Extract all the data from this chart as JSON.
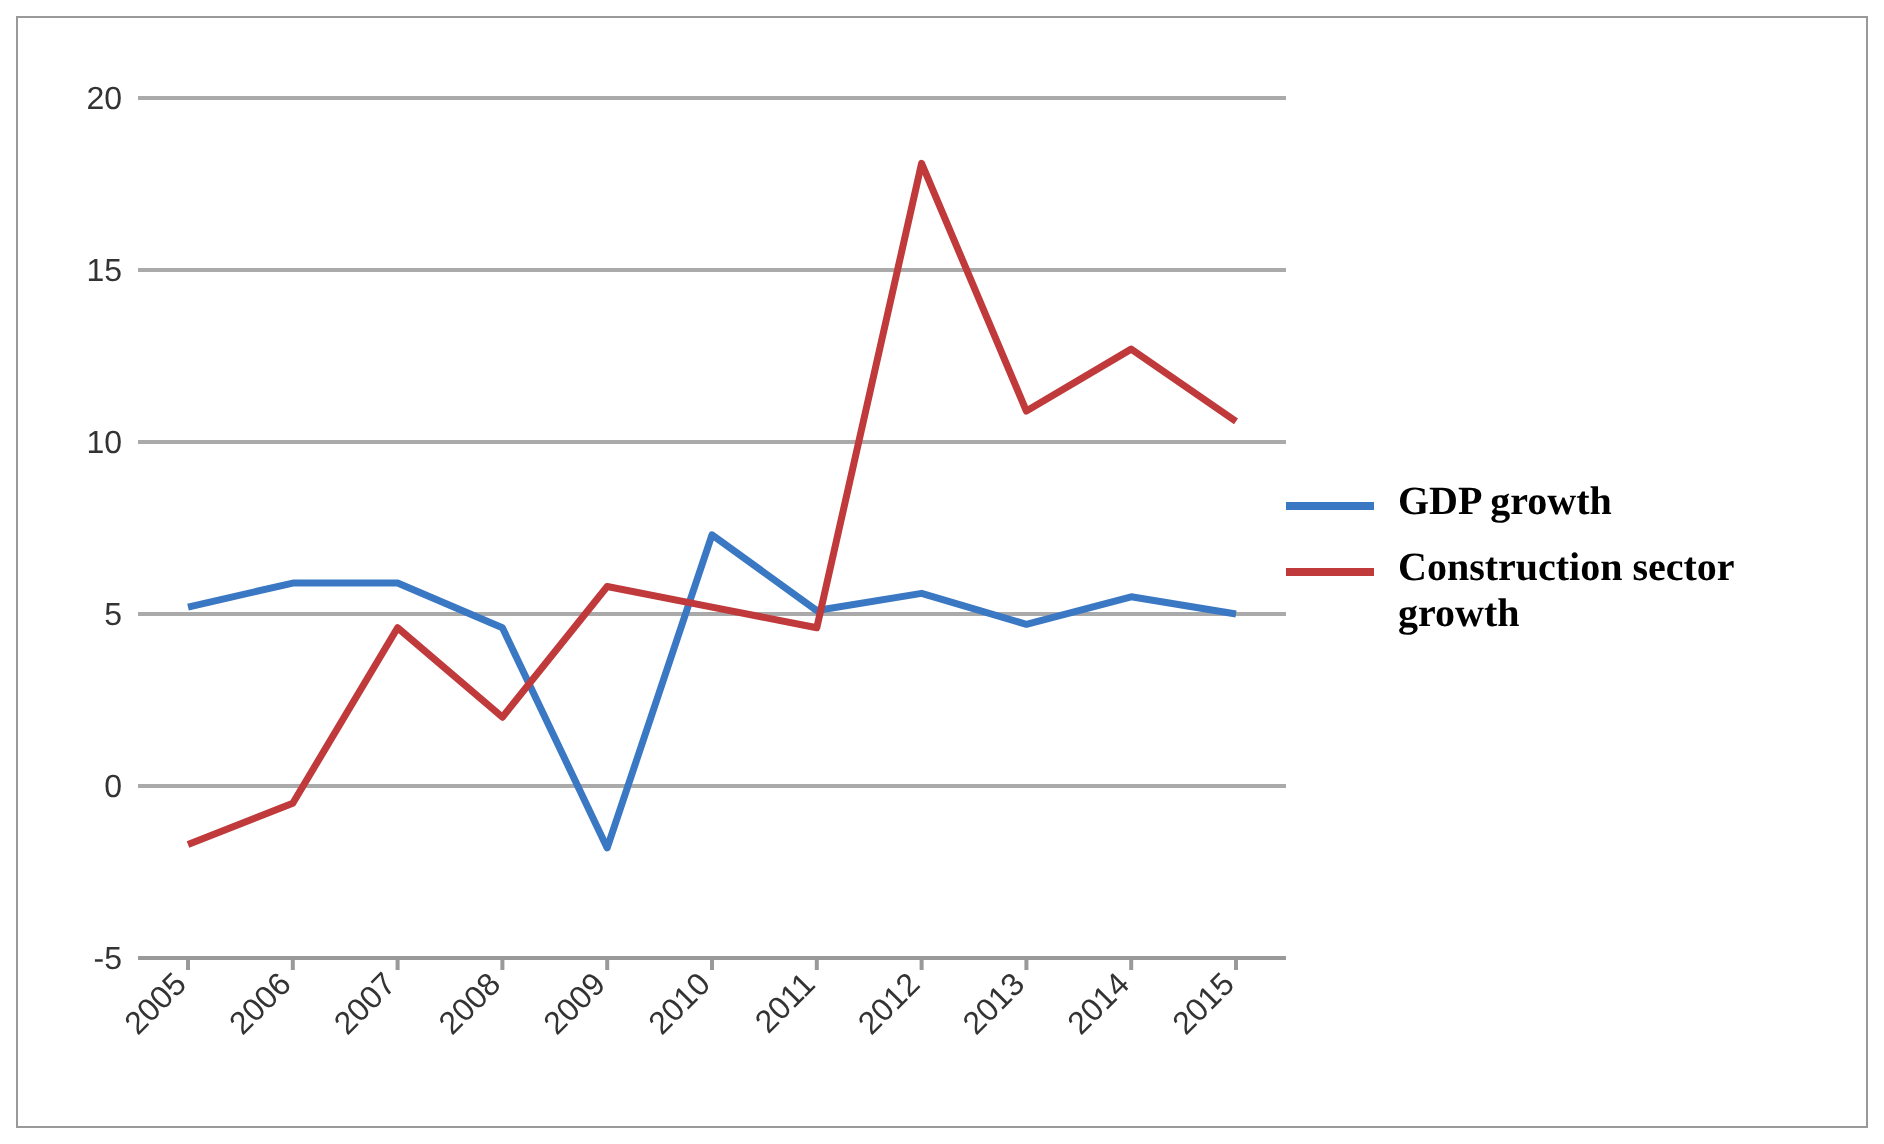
{
  "chart_data": {
    "type": "line",
    "categories": [
      "2005",
      "2006",
      "2007",
      "2008",
      "2009",
      "2010",
      "2011",
      "2012",
      "2013",
      "2014",
      "2015"
    ],
    "series": [
      {
        "name": "GDP growth",
        "color": "#3a78c3",
        "values": [
          5.2,
          5.9,
          5.9,
          4.6,
          -1.8,
          7.3,
          5.1,
          5.6,
          4.7,
          5.5,
          5.0
        ]
      },
      {
        "name": "Construction sector growth",
        "color": "#c0393b",
        "values": [
          -1.7,
          -0.5,
          4.6,
          2.0,
          5.8,
          5.2,
          4.6,
          18.1,
          10.9,
          12.7,
          10.6
        ]
      }
    ],
    "ylim": [
      -5,
      20
    ],
    "yticks": [
      -5,
      0,
      5,
      10,
      15,
      20
    ],
    "grid": "y",
    "legend": "right",
    "marker": "none",
    "line_style": "solid"
  }
}
